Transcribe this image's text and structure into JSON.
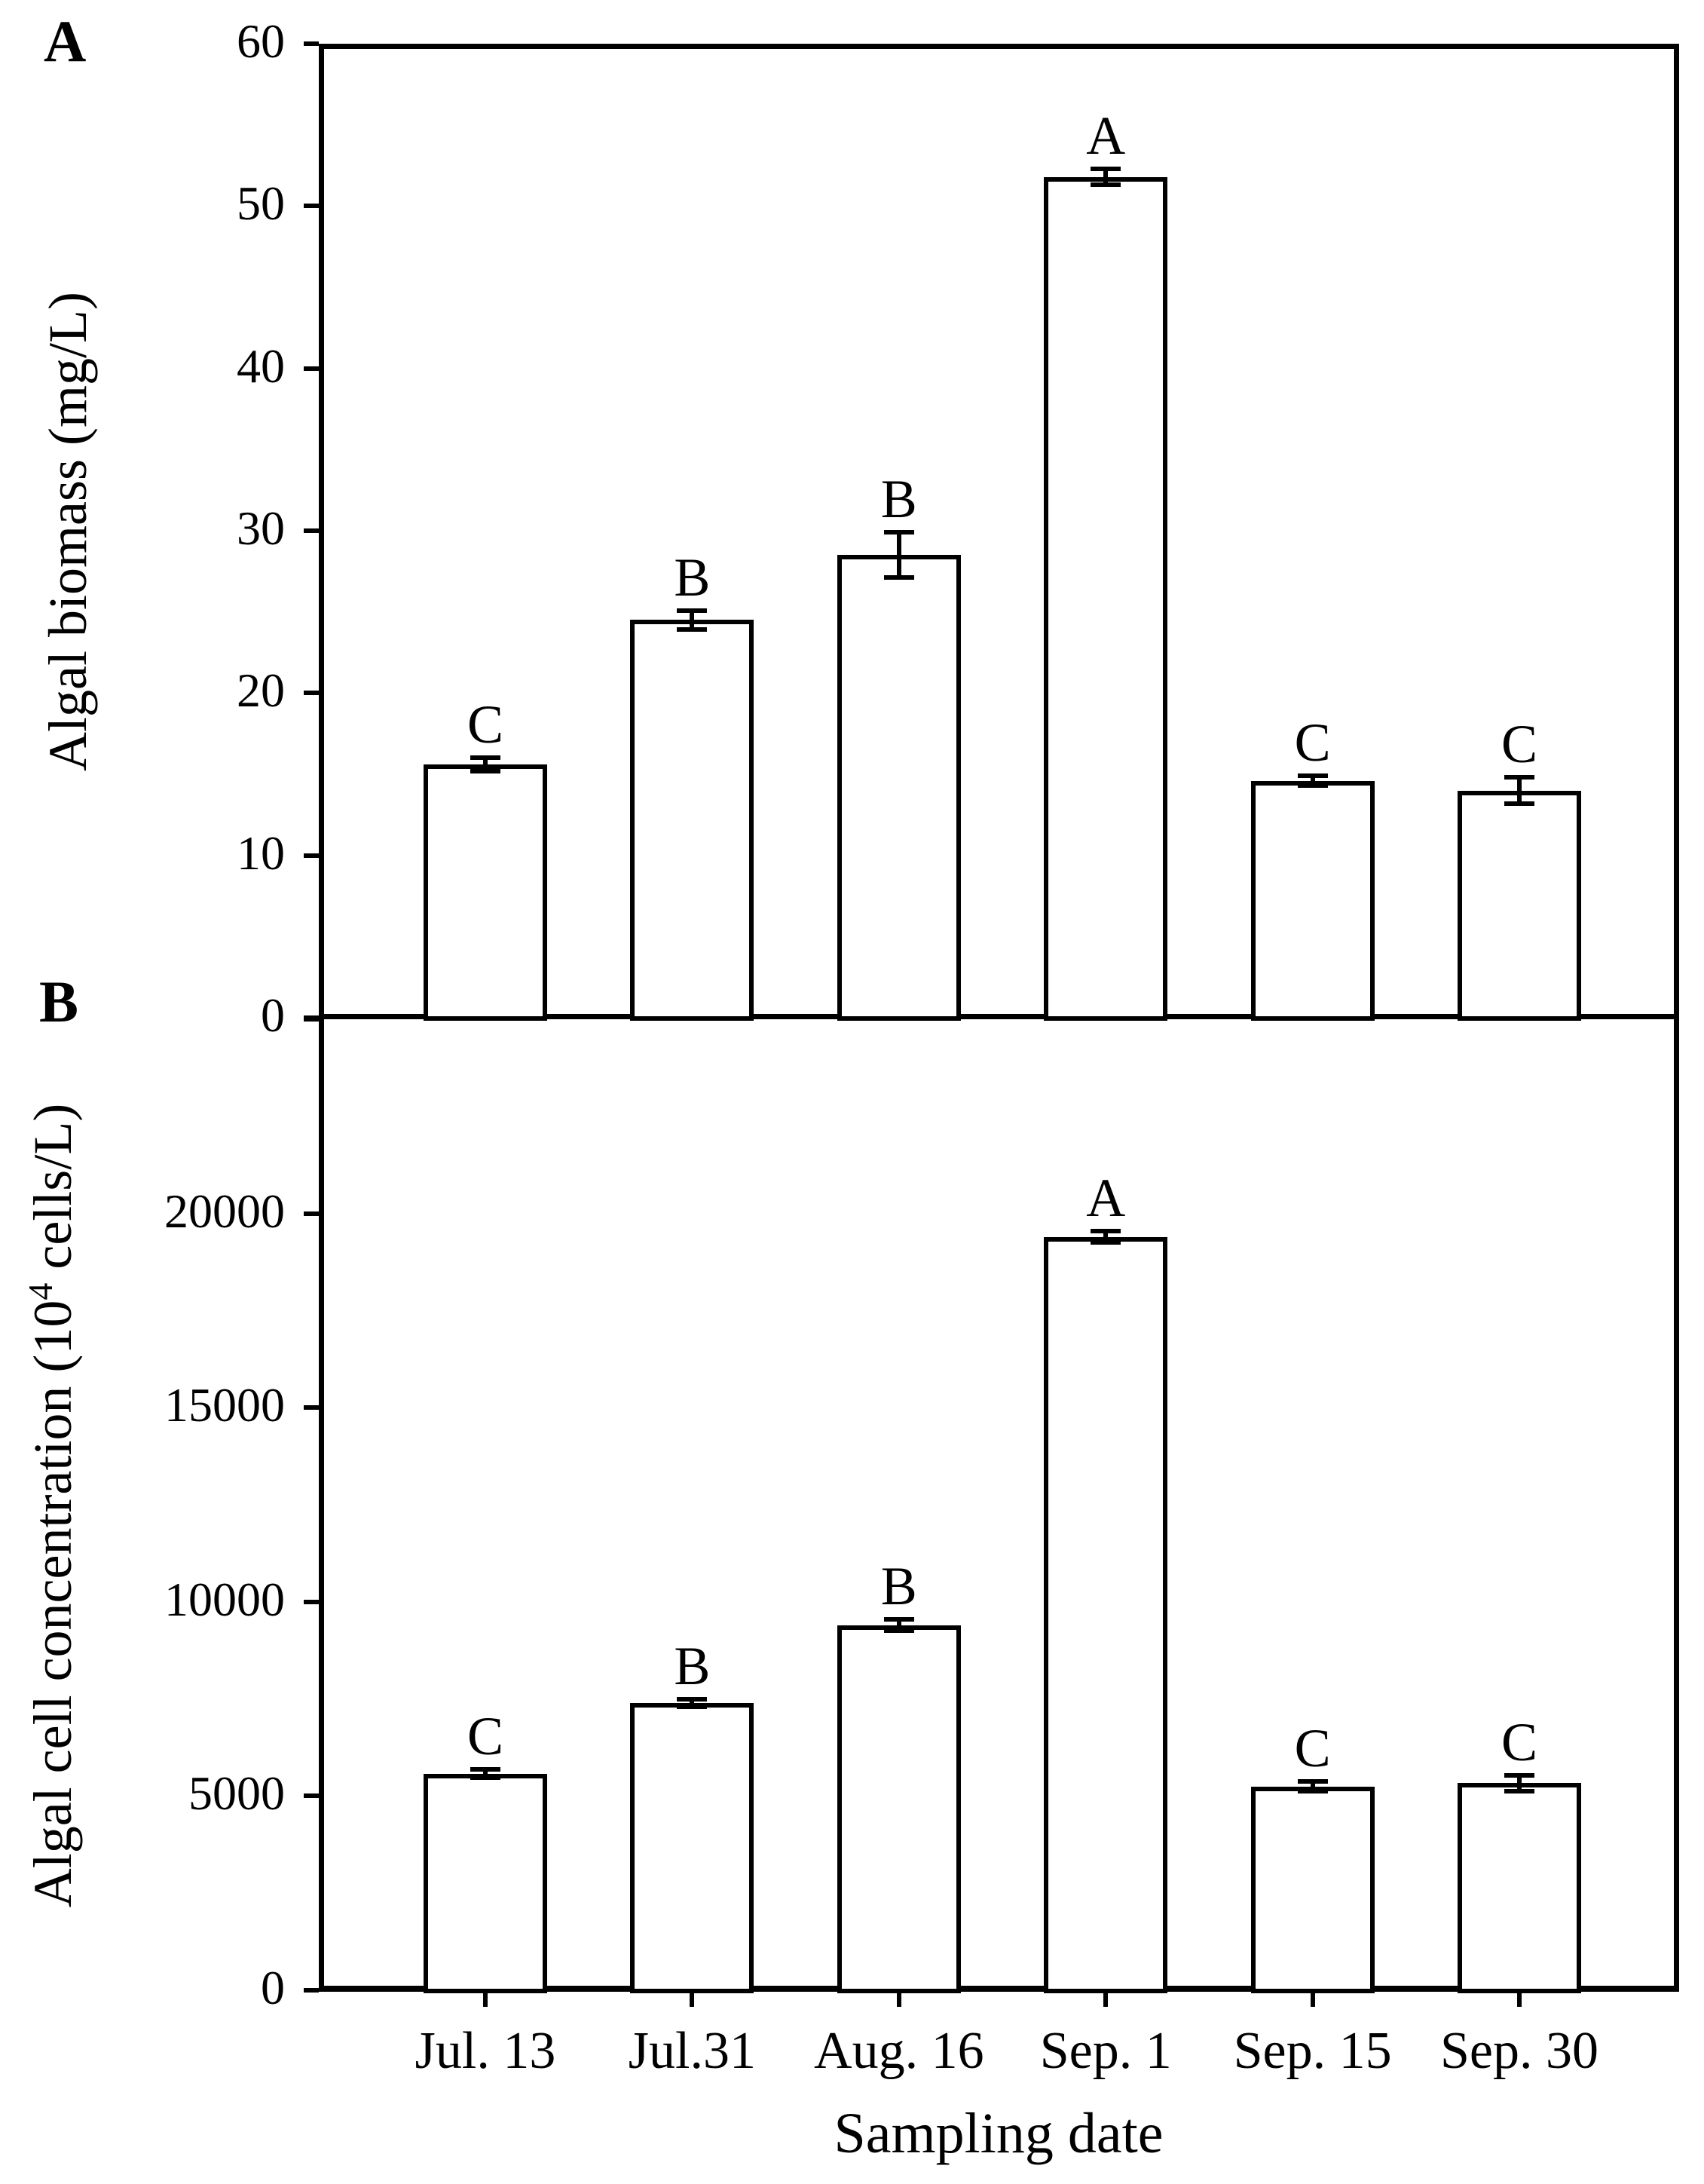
{
  "figure": {
    "panel_a_label": "A",
    "panel_b_label": "B",
    "xlabel": "Sampling date"
  },
  "chart_data": [
    {
      "panel": "A",
      "type": "bar",
      "ylabel_parts": {
        "prefix": "Algal biomass (mg/L)",
        "sup": "",
        "suffix": ""
      },
      "categories": [
        "Jul. 13",
        "Jul.31",
        "Aug. 16",
        "Sep. 1",
        "Sep. 15",
        "Sep. 30"
      ],
      "values": [
        15.6,
        24.5,
        28.5,
        51.8,
        14.6,
        14.0
      ],
      "errors": [
        0.4,
        0.6,
        1.4,
        0.5,
        0.3,
        0.8
      ],
      "sig_letters": [
        "C",
        "B",
        "B",
        "A",
        "C",
        "C"
      ],
      "ylim": [
        0,
        60
      ],
      "yticks": [
        {
          "v": 0,
          "label": "0"
        },
        {
          "v": 10,
          "label": "10"
        },
        {
          "v": 20,
          "label": "20"
        },
        {
          "v": 30,
          "label": "30"
        },
        {
          "v": 40,
          "label": "40"
        },
        {
          "v": 50,
          "label": "50"
        },
        {
          "v": 60,
          "label": "60"
        }
      ],
      "grid": false,
      "legend": "none",
      "show_x_labels": false
    },
    {
      "panel": "B",
      "type": "bar",
      "ylabel_parts": {
        "prefix": "Algal cell concentration (10",
        "sup": "4",
        "suffix": " cells/L)"
      },
      "categories": [
        "Jul. 13",
        "Jul.31",
        "Aug. 16",
        "Sep. 1",
        "Sep. 15",
        "Sep. 30"
      ],
      "values": [
        5580,
        7400,
        9400,
        19400,
        5250,
        5330
      ],
      "errors": [
        100,
        100,
        150,
        150,
        120,
        200
      ],
      "sig_letters": [
        "C",
        "B",
        "B",
        "A",
        "C",
        "C"
      ],
      "ylim": [
        0,
        25000
      ],
      "yticks": [
        {
          "v": 0,
          "label": "0"
        },
        {
          "v": 5000,
          "label": "5000"
        },
        {
          "v": 10000,
          "label": "10000"
        },
        {
          "v": 15000,
          "label": "15000"
        },
        {
          "v": 20000,
          "label": "20000"
        },
        {
          "v": 25000,
          "label": ""
        }
      ],
      "grid": false,
      "legend": "none",
      "show_x_labels": true
    }
  ]
}
